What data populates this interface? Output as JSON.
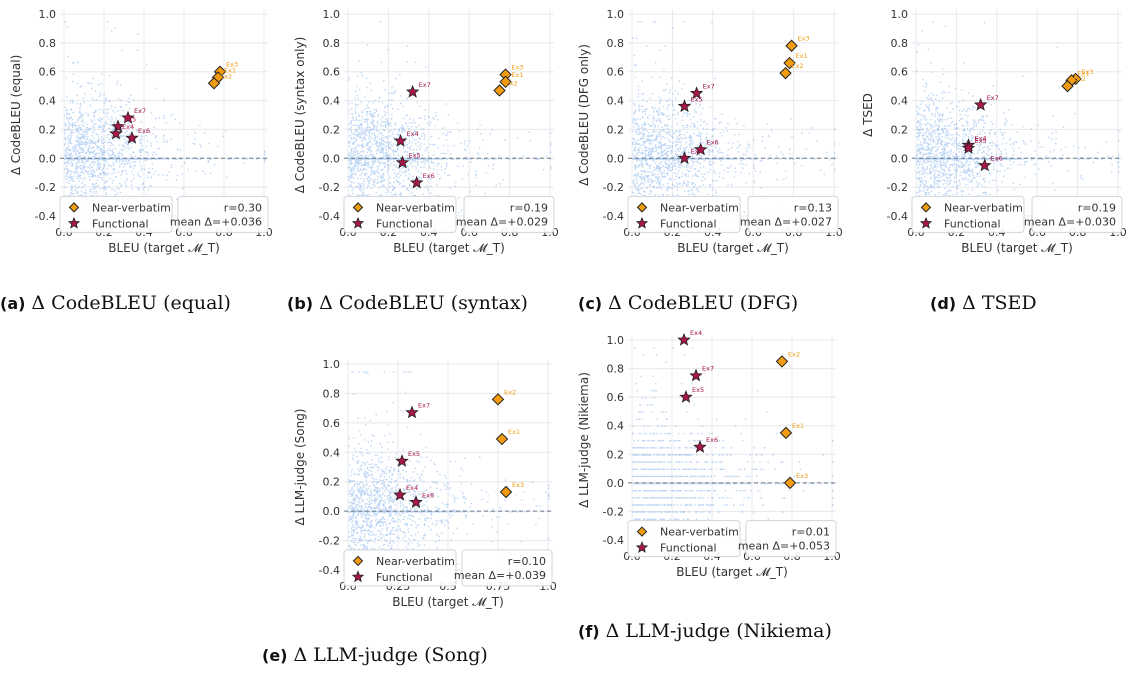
{
  "colors": {
    "scatter": "#2f7de1",
    "near_verbatim": "#f39c12",
    "functional": "#a8174a",
    "zero_line": "#6c7a8a",
    "grid": "#e6e8ec"
  },
  "legend_labels": [
    "Near-verbatim",
    "Functional"
  ],
  "chart_data": [
    {
      "type": "scatter",
      "caption_tag": "(a)",
      "caption": "Δ CodeBLEU (equal)",
      "xlabel": "BLEU (target 𝓜_T)",
      "ylabel": "Δ CodeBLEU (equal)",
      "xlim": [
        0,
        1
      ],
      "ylim": [
        -0.4,
        1.0
      ],
      "xticks": [
        "0.0",
        "0.2",
        "0.4",
        "0.6",
        "0.8",
        "1.0"
      ],
      "yticks": [
        "-0.4",
        "-0.2",
        "0.0",
        "0.2",
        "0.4",
        "0.6",
        "0.8",
        "1.0"
      ],
      "stats": [
        "r=0.30",
        "mean Δ=+0.036"
      ],
      "near_verbatim": [
        {
          "label": "Ex3",
          "x": 0.78,
          "y": 0.6
        },
        {
          "label": "Ex1",
          "x": 0.77,
          "y": 0.56
        },
        {
          "label": "Ex2",
          "x": 0.75,
          "y": 0.52
        }
      ],
      "functional": [
        {
          "label": "Ex7",
          "x": 0.32,
          "y": 0.28
        },
        {
          "label": "Ex5",
          "x": 0.27,
          "y": 0.22
        },
        {
          "label": "Ex4",
          "x": 0.26,
          "y": 0.17
        },
        {
          "label": "Ex6",
          "x": 0.34,
          "y": 0.14
        }
      ]
    },
    {
      "type": "scatter",
      "caption_tag": "(b)",
      "caption": "Δ CodeBLEU (syntax)",
      "xlabel": "BLEU (target 𝓜_T)",
      "ylabel": "Δ CodeBLEU (syntax only)",
      "xlim": [
        0,
        1
      ],
      "ylim": [
        -0.4,
        1.0
      ],
      "xticks": [
        "0.0",
        "0.2",
        "0.4",
        "0.6",
        "0.8",
        "1.0"
      ],
      "yticks": [
        "-0.4",
        "-0.2",
        "0.0",
        "0.2",
        "0.4",
        "0.6",
        "0.8",
        "1.0"
      ],
      "stats": [
        "r=0.19",
        "mean Δ=+0.029"
      ],
      "near_verbatim": [
        {
          "label": "Ex3",
          "x": 0.78,
          "y": 0.58
        },
        {
          "label": "Ex1",
          "x": 0.78,
          "y": 0.53
        },
        {
          "label": "Ex2",
          "x": 0.75,
          "y": 0.47
        }
      ],
      "functional": [
        {
          "label": "Ex7",
          "x": 0.32,
          "y": 0.46
        },
        {
          "label": "Ex4",
          "x": 0.26,
          "y": 0.12
        },
        {
          "label": "Ex5",
          "x": 0.27,
          "y": -0.03
        },
        {
          "label": "Ex6",
          "x": 0.34,
          "y": -0.17
        }
      ]
    },
    {
      "type": "scatter",
      "caption_tag": "(c)",
      "caption": "Δ CodeBLEU (DFG)",
      "xlabel": "BLEU (target 𝓜_T)",
      "ylabel": "Δ CodeBLEU (DFG only)",
      "xlim": [
        0,
        1
      ],
      "ylim": [
        -0.4,
        1.0
      ],
      "xticks": [
        "0.0",
        "0.2",
        "0.4",
        "0.6",
        "0.8",
        "1.0"
      ],
      "yticks": [
        "-0.4",
        "-0.2",
        "0.0",
        "0.2",
        "0.4",
        "0.6",
        "0.8",
        "1.0"
      ],
      "stats": [
        "r=0.13",
        "mean Δ=+0.027"
      ],
      "near_verbatim": [
        {
          "label": "Ex3",
          "x": 0.79,
          "y": 0.78
        },
        {
          "label": "Ex1",
          "x": 0.78,
          "y": 0.66
        },
        {
          "label": "Ex2",
          "x": 0.76,
          "y": 0.59
        }
      ],
      "functional": [
        {
          "label": "Ex7",
          "x": 0.32,
          "y": 0.45
        },
        {
          "label": "Ex5",
          "x": 0.26,
          "y": 0.36
        },
        {
          "label": "Ex6",
          "x": 0.34,
          "y": 0.06
        },
        {
          "label": "Ex4",
          "x": 0.26,
          "y": 0.0
        }
      ]
    },
    {
      "type": "scatter",
      "caption_tag": "(d)",
      "caption": "Δ TSED",
      "xlabel": "BLEU (target 𝓜_T)",
      "ylabel": "Δ TSED",
      "xlim": [
        0,
        1
      ],
      "ylim": [
        -0.4,
        1.0
      ],
      "xticks": [
        "0.0",
        "0.2",
        "0.4",
        "0.6",
        "0.8",
        "1.0"
      ],
      "yticks": [
        "-0.4",
        "-0.2",
        "0.0",
        "0.2",
        "0.4",
        "0.6",
        "0.8",
        "1.0"
      ],
      "stats": [
        "r=0.19",
        "mean Δ=+0.030"
      ],
      "near_verbatim": [
        {
          "label": "Ex3",
          "x": 0.79,
          "y": 0.55
        },
        {
          "label": "Ex1",
          "x": 0.77,
          "y": 0.54
        },
        {
          "label": "Ex2",
          "x": 0.75,
          "y": 0.5
        }
      ],
      "functional": [
        {
          "label": "Ex7",
          "x": 0.32,
          "y": 0.37
        },
        {
          "label": "Ex4",
          "x": 0.26,
          "y": 0.09
        },
        {
          "label": "Ex5",
          "x": 0.26,
          "y": 0.07
        },
        {
          "label": "Ex6",
          "x": 0.34,
          "y": -0.05
        }
      ]
    },
    {
      "type": "scatter",
      "caption_tag": "(e)",
      "caption": "Δ LLM-judge (Song)",
      "xlabel": "BLEU (target 𝓜_T)",
      "ylabel": "Δ LLM-judge (Song)",
      "xlim": [
        0,
        1
      ],
      "ylim": [
        -0.4,
        1.0
      ],
      "xticks": [
        "0.0",
        "0.25",
        "0.5",
        "0.75",
        "1.0"
      ],
      "xtick_values": [
        0,
        0.25,
        0.5,
        0.75,
        1.0
      ],
      "yticks": [
        "-0.4",
        "-0.2",
        "0.0",
        "0.2",
        "0.4",
        "0.6",
        "0.8",
        "1.0"
      ],
      "stats": [
        "r=0.10",
        "mean Δ=+0.039"
      ],
      "near_verbatim": [
        {
          "label": "Ex2",
          "x": 0.75,
          "y": 0.76
        },
        {
          "label": "Ex1",
          "x": 0.77,
          "y": 0.49
        },
        {
          "label": "Ex3",
          "x": 0.79,
          "y": 0.13
        }
      ],
      "functional": [
        {
          "label": "Ex7",
          "x": 0.32,
          "y": 0.67
        },
        {
          "label": "Ex5",
          "x": 0.27,
          "y": 0.34
        },
        {
          "label": "Ex4",
          "x": 0.26,
          "y": 0.11
        },
        {
          "label": "Ex6",
          "x": 0.34,
          "y": 0.06
        }
      ]
    },
    {
      "type": "scatter",
      "caption_tag": "(f)",
      "caption": "Δ LLM-judge (Nikiema)",
      "xlabel": "BLEU (target 𝓜_T)",
      "ylabel": "Δ LLM-judge (Nikiema)",
      "xlim": [
        0,
        1
      ],
      "ylim": [
        -0.4,
        1.0
      ],
      "xticks": [
        "0.0",
        "0.2",
        "0.4",
        "0.6",
        "0.8",
        "1.0"
      ],
      "yticks": [
        "-0.4",
        "-0.2",
        "0.0",
        "0.2",
        "0.4",
        "0.6",
        "0.8",
        "1.0"
      ],
      "stats": [
        "r=0.01",
        "mean Δ=+0.053"
      ],
      "near_verbatim": [
        {
          "label": "Ex2",
          "x": 0.75,
          "y": 0.85
        },
        {
          "label": "Ex1",
          "x": 0.77,
          "y": 0.35
        },
        {
          "label": "Ex3",
          "x": 0.79,
          "y": 0.0
        }
      ],
      "functional": [
        {
          "label": "Ex4",
          "x": 0.26,
          "y": 1.0
        },
        {
          "label": "Ex7",
          "x": 0.32,
          "y": 0.75
        },
        {
          "label": "Ex5",
          "x": 0.27,
          "y": 0.6
        },
        {
          "label": "Ex6",
          "x": 0.34,
          "y": 0.25
        }
      ]
    }
  ]
}
